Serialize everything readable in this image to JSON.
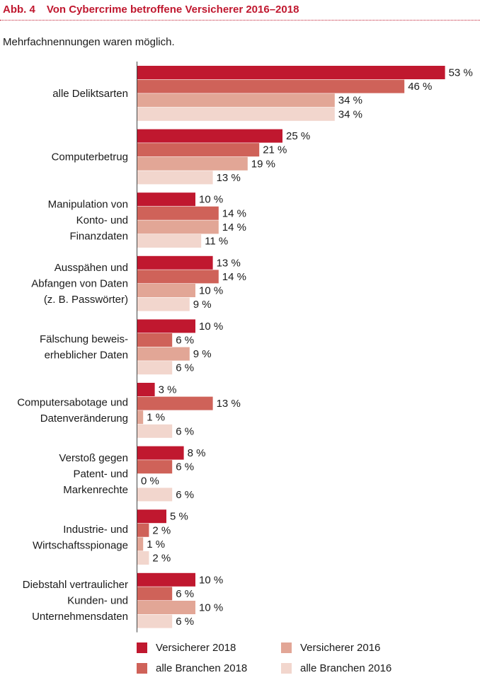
{
  "header": {
    "figure_number": "Abb. 4",
    "title": "Von Cybercrime betroffene Versicherer 2016–2018"
  },
  "subtitle": "Mehrfachnennungen waren möglich.",
  "colors": {
    "accent": "#c0182f",
    "series": [
      "#c0182f",
      "#cf6259",
      "#e2a696",
      "#f2d6cd"
    ]
  },
  "chart_data": {
    "type": "bar",
    "orientation": "horizontal",
    "unit": "%",
    "xlim": [
      0,
      53
    ],
    "grid": false,
    "legend_position": "bottom",
    "categories": [
      [
        "alle Deliktsarten"
      ],
      [
        "Computerbetrug"
      ],
      [
        "Manipulation von",
        "Konto- und",
        "Finanzdaten"
      ],
      [
        "Ausspähen und",
        "Abfangen von Daten",
        "(z. B. Passwörter)"
      ],
      [
        "Fälschung beweis-",
        "erheblicher Daten"
      ],
      [
        "Computersabotage und",
        "Datenveränderung"
      ],
      [
        "Verstoß gegen",
        "Patent- und",
        "Markenrechte"
      ],
      [
        "Industrie- und",
        "Wirtschaftsspionage"
      ],
      [
        "Diebstahl vertraulicher",
        "Kunden- und",
        "Unternehmensdaten"
      ]
    ],
    "series": [
      {
        "name": "Versicherer 2018",
        "color": "#c0182f",
        "values": [
          53,
          25,
          10,
          13,
          10,
          3,
          8,
          5,
          10
        ]
      },
      {
        "name": "alle Branchen 2018",
        "color": "#cf6259",
        "values": [
          46,
          21,
          14,
          14,
          6,
          13,
          6,
          2,
          6
        ]
      },
      {
        "name": "Versicherer 2016",
        "color": "#e2a696",
        "values": [
          34,
          19,
          14,
          10,
          9,
          1,
          0,
          1,
          10
        ]
      },
      {
        "name": "alle Branchen 2016",
        "color": "#f2d6cd",
        "values": [
          34,
          13,
          11,
          9,
          6,
          6,
          6,
          2,
          6
        ]
      }
    ],
    "value_labels": [
      [
        "53 %",
        "25 %",
        "10 %",
        "13 %",
        "10 %",
        "3 %",
        "8 %",
        "5 %",
        "10 %"
      ],
      [
        "46 %",
        "21 %",
        "14 %",
        "14 %",
        "6 %",
        "13 %",
        "6 %",
        "2 %",
        "6 %"
      ],
      [
        "34 %",
        "19 %",
        "14 %",
        "10 %",
        "9 %",
        "1 %",
        "0 %",
        "1 %",
        "10 %"
      ],
      [
        "34 %",
        "13 %",
        "11 %",
        "9 %",
        "6 %",
        "6 %",
        "6 %",
        "2 %",
        "6 %"
      ]
    ]
  }
}
